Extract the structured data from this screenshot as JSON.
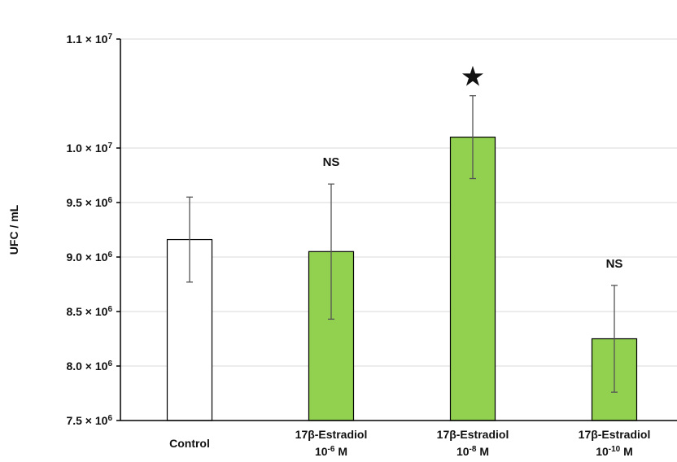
{
  "chart_data": {
    "type": "bar",
    "ylabel": "UFC / mL",
    "y_tick_labels": [
      {
        "value": 7500000,
        "mantissa": "7.5 × 10",
        "exp": "6"
      },
      {
        "value": 8000000,
        "mantissa": "8.0 × 10",
        "exp": "6"
      },
      {
        "value": 8500000,
        "mantissa": "8.5 × 10",
        "exp": "6"
      },
      {
        "value": 9000000,
        "mantissa": "9.0 × 10",
        "exp": "6"
      },
      {
        "value": 9500000,
        "mantissa": "9.5 × 10",
        "exp": "6"
      },
      {
        "value": 10000000,
        "mantissa": "1.0 × 10",
        "exp": "7"
      },
      {
        "value": 11000000,
        "mantissa": "1.1 × 10",
        "exp": "7"
      }
    ],
    "ylim": [
      7500000,
      11000000
    ],
    "gridlines": true,
    "categories": [
      {
        "line1": "Control",
        "base": "",
        "exp": "",
        "unit": ""
      },
      {
        "line1": "17β-Estradiol",
        "base": "10",
        "exp": "-6",
        "unit": " M"
      },
      {
        "line1": "17β-Estradiol",
        "base": "10",
        "exp": "-8",
        "unit": " M"
      },
      {
        "line1": "17β-Estradiol",
        "base": "10",
        "exp": "-10",
        "unit": " M"
      }
    ],
    "values": [
      9160000,
      9050000,
      10100000,
      8250000
    ],
    "errors": [
      390000,
      620000,
      380000,
      490000
    ],
    "bar_colors": [
      "#ffffff",
      "#92d050",
      "#92d050",
      "#92d050"
    ],
    "annotations": [
      "",
      "NS",
      "★",
      "NS"
    ],
    "colors": {
      "edge": "#000000",
      "error_bar": "#555555",
      "grid": "#d9d9d9"
    }
  }
}
